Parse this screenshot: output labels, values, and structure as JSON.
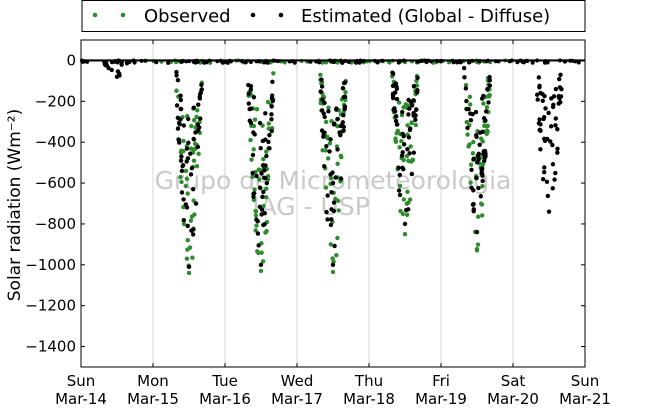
{
  "chart_data": {
    "type": "scatter",
    "ylabel": "Solar radiation (Wm⁻²)",
    "ylim": [
      -1500,
      100
    ],
    "yticks": [
      0,
      -200,
      -400,
      -600,
      -800,
      -1000,
      -1200,
      -1400
    ],
    "xlim": [
      0,
      7
    ],
    "xticks": [
      {
        "day": 0,
        "weekday": "Sun",
        "date": "Mar-14"
      },
      {
        "day": 1,
        "weekday": "Mon",
        "date": "Mar-15"
      },
      {
        "day": 2,
        "weekday": "Tue",
        "date": "Mar-16"
      },
      {
        "day": 3,
        "weekday": "Wed",
        "date": "Mar-17"
      },
      {
        "day": 4,
        "weekday": "Thu",
        "date": "Mar-18"
      },
      {
        "day": 5,
        "weekday": "Fri",
        "date": "Mar-19"
      },
      {
        "day": 6,
        "weekday": "Sat",
        "date": "Mar-20"
      },
      {
        "day": 7,
        "weekday": "Sun",
        "date": "Mar-21"
      }
    ],
    "grid": "vertical",
    "legend_position": "top, outside plot",
    "zero_line": true,
    "watermark": [
      "Grupo de Micrometeorologia",
      "IAG - USP"
    ],
    "series": [
      {
        "name": "Observed",
        "color": "#2e8b2e",
        "daily_peak": [
          {
            "day": 1,
            "min": -1040
          },
          {
            "day": 2,
            "min": -1030
          },
          {
            "day": 3,
            "min": -1035
          },
          {
            "day": 4,
            "min": -850
          },
          {
            "day": 5,
            "min": -930
          }
        ]
      },
      {
        "name": "Estimated (Global - Diffuse)",
        "color": "#000000",
        "daily_peak": [
          {
            "day": 0,
            "min": -80
          },
          {
            "day": 1,
            "min": -1010
          },
          {
            "day": 2,
            "min": -1000
          },
          {
            "day": 3,
            "min": -1000
          },
          {
            "day": 4,
            "min": -800
          },
          {
            "day": 5,
            "min": -840
          },
          {
            "day": 6,
            "min": -740
          }
        ]
      }
    ]
  }
}
